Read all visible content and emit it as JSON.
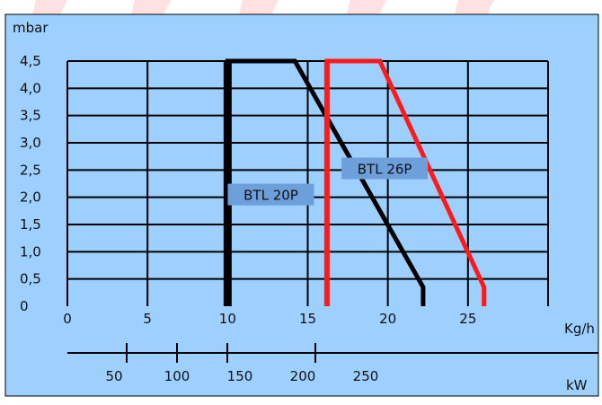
{
  "chart_data": {
    "type": "line",
    "title": "",
    "ylabel": "mbar",
    "xlabel": "Kg/h",
    "x2label": "kW",
    "yticks": [
      {
        "label": "4,5",
        "value": 4.5
      },
      {
        "label": "4,0",
        "value": 4.0
      },
      {
        "label": "3,5",
        "value": 3.5
      },
      {
        "label": "3,0",
        "value": 3.0
      },
      {
        "label": "2,5",
        "value": 2.5
      },
      {
        "label": "2,0",
        "value": 2.0
      },
      {
        "label": "1,5",
        "value": 1.5
      },
      {
        "label": "1,0",
        "value": 1.0
      },
      {
        "label": "0,5",
        "value": 0.5
      },
      {
        "label": "0",
        "value": 0
      }
    ],
    "xticks": [
      {
        "label": "0",
        "value": 0
      },
      {
        "label": "5",
        "value": 5
      },
      {
        "label": "10",
        "value": 10
      },
      {
        "label": "15",
        "value": 15
      },
      {
        "label": "20",
        "value": 20
      },
      {
        "label": "25",
        "value": 25
      }
    ],
    "x2ticks": [
      {
        "label": "50",
        "value": 50
      },
      {
        "label": "100",
        "value": 100
      },
      {
        "label": "150",
        "value": 150
      },
      {
        "label": "200",
        "value": 200
      },
      {
        "label": "250",
        "value": 250
      }
    ],
    "xlim": [
      0,
      30
    ],
    "ylim": [
      0,
      4.5
    ],
    "series": [
      {
        "name": "BTL 20P",
        "color": "#000000",
        "points": [
          [
            10,
            0
          ],
          [
            10,
            4.5
          ],
          [
            14.2,
            4.5
          ],
          [
            22.2,
            0.35
          ],
          [
            22.2,
            0
          ]
        ]
      },
      {
        "name": "BTL 26P",
        "color": "#ff1a1a",
        "points": [
          [
            16.2,
            0
          ],
          [
            16.2,
            4.5
          ],
          [
            19.5,
            4.5
          ],
          [
            26,
            0.35
          ],
          [
            26,
            0
          ]
        ]
      }
    ],
    "annotations": [
      {
        "text": "BTL 20P",
        "x": 12.7,
        "y": 2.05
      },
      {
        "text": "BTL 26P",
        "x": 19.8,
        "y": 2.53
      }
    ],
    "grid": true,
    "colors": {
      "background": "#9dcfff",
      "grid": "#000000"
    }
  }
}
